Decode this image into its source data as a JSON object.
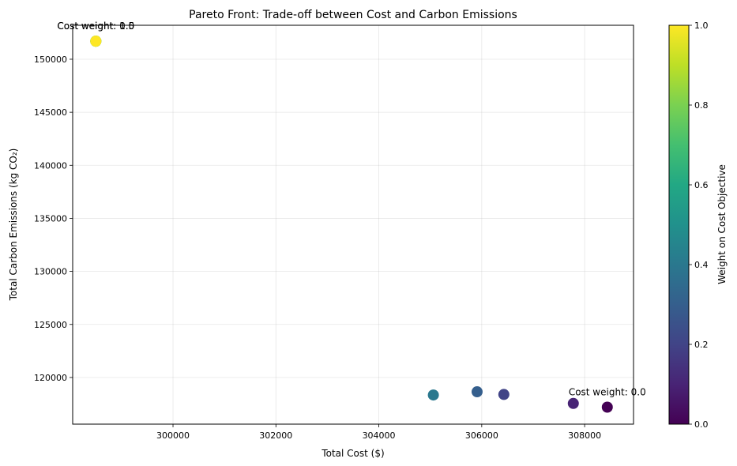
{
  "chart_data": {
    "type": "scatter",
    "title": "Pareto Front: Trade-off between Cost and Carbon Emissions",
    "xlabel": "Total Cost ($)",
    "ylabel": "Total Carbon Emissions (kg CO₂)",
    "xlim": [
      298050,
      308950
    ],
    "ylim": [
      115600,
      153200
    ],
    "xticks": [
      300000,
      302000,
      304000,
      306000,
      308000
    ],
    "yticks": [
      120000,
      125000,
      130000,
      135000,
      140000,
      145000,
      150000
    ],
    "grid": true,
    "points": [
      {
        "x": 308440,
        "y": 117200,
        "weight": 0.0
      },
      {
        "x": 307780,
        "y": 117550,
        "weight": 0.1
      },
      {
        "x": 306430,
        "y": 118400,
        "weight": 0.2
      },
      {
        "x": 305910,
        "y": 118650,
        "weight": 0.3
      },
      {
        "x": 305060,
        "y": 118350,
        "weight": 0.4
      },
      {
        "x": 298500,
        "y": 151700,
        "weight": 0.5
      },
      {
        "x": 298500,
        "y": 151700,
        "weight": 0.6
      },
      {
        "x": 298500,
        "y": 151700,
        "weight": 0.7
      },
      {
        "x": 298500,
        "y": 151700,
        "weight": 0.8
      },
      {
        "x": 298500,
        "y": 151700,
        "weight": 0.9
      },
      {
        "x": 298500,
        "y": 151700,
        "weight": 1.0
      }
    ],
    "annotations": [
      {
        "text": "Cost weight: 0.0",
        "x": 308440,
        "y": 117200
      },
      {
        "text": "Cost weight: 0.5",
        "x": 298500,
        "y": 151700
      },
      {
        "text": "Cost weight: 1.0",
        "x": 298500,
        "y": 151700
      }
    ],
    "colorbar": {
      "label": "Weight on Cost Objective",
      "colormap": "viridis",
      "range": [
        0.0,
        1.0
      ],
      "ticks": [
        "0.0",
        "0.2",
        "0.4",
        "0.6",
        "0.8",
        "1.0"
      ]
    }
  }
}
